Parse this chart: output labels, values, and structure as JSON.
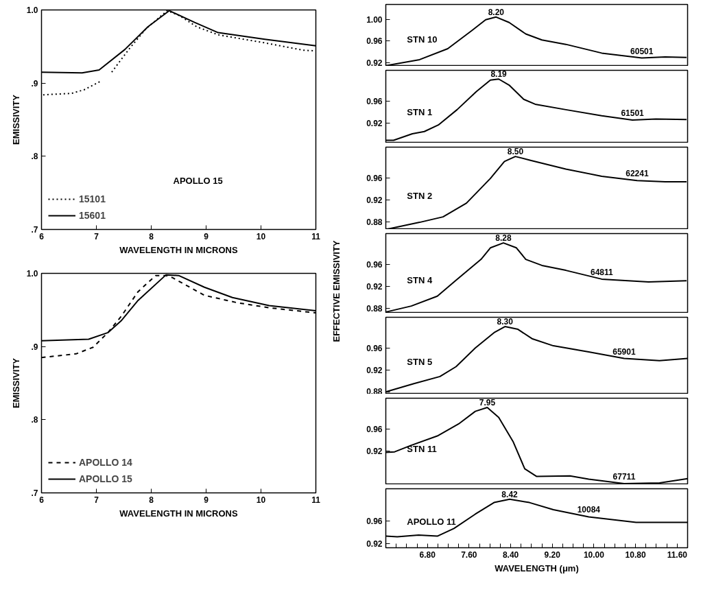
{
  "chart_data": [
    {
      "type": "line",
      "xlabel": "WAVELENGTH IN MICRONS",
      "ylabel": "EMISSIVITY",
      "xlim": [
        6,
        11
      ],
      "ylim": [
        0.7,
        1.0
      ],
      "xticks": [
        6,
        7,
        8,
        9,
        10,
        11
      ],
      "yticks": [
        {
          "value": 0.7,
          "label": ".7"
        },
        {
          "value": 0.8,
          "label": ".8"
        },
        {
          "value": 0.9,
          "label": ".9"
        },
        {
          "value": 1.0,
          "label": "1.0"
        }
      ],
      "legend": "bottom left",
      "annotations": [
        "APOLLO 15"
      ],
      "series": [
        {
          "name": "15101",
          "color": "#000000",
          "line_style": "dotted",
          "x": [
            6.03,
            6.55,
            6.78,
            7.09
          ],
          "values": [
            0.884,
            0.886,
            0.891,
            0.903
          ]
        },
        {
          "name": "15601",
          "color": "#000000",
          "line_style": "solid",
          "x": [
            6.0,
            6.74,
            7.05,
            7.52,
            7.94,
            8.33,
            8.79,
            9.22,
            10.07,
            11.0
          ],
          "values": [
            0.915,
            0.914,
            0.918,
            0.946,
            0.977,
            0.999,
            0.983,
            0.969,
            0.96,
            0.951
          ]
        },
        {
          "color": "#000000",
          "line_style": "dotted",
          "x": [
            7.28,
            7.59,
            7.9,
            8.29,
            8.52,
            8.83,
            9.22,
            10.07,
            10.77,
            11.0
          ],
          "values": [
            0.915,
            0.946,
            0.974,
            0.999,
            0.992,
            0.977,
            0.966,
            0.955,
            0.945,
            0.944
          ]
        }
      ]
    },
    {
      "type": "line",
      "xlabel": "WAVELENGTH IN MICRONS",
      "ylabel": "EMISSIVITY",
      "xlim": [
        6,
        11
      ],
      "ylim": [
        0.7,
        1.0
      ],
      "xticks": [
        6,
        7,
        8,
        9,
        10,
        11
      ],
      "yticks": [
        {
          "value": 0.7,
          "label": ".7"
        },
        {
          "value": 0.8,
          "label": ".8"
        },
        {
          "value": 0.9,
          "label": ".9"
        },
        {
          "value": 1.0,
          "label": "1.0"
        }
      ],
      "legend": "bottom left",
      "series": [
        {
          "name": "APOLLO 14",
          "color": "#000000",
          "line_style": "dashed",
          "x": [
            6.0,
            6.63,
            6.94,
            7.21,
            7.45,
            7.76,
            8.08,
            8.27,
            8.39,
            8.97,
            9.56,
            10.15,
            11.0
          ],
          "values": [
            0.885,
            0.89,
            0.899,
            0.919,
            0.941,
            0.975,
            0.997,
            0.997,
            0.994,
            0.97,
            0.96,
            0.953,
            0.946
          ]
        },
        {
          "name": "APOLLO 15",
          "color": "#000000",
          "line_style": "solid",
          "x": [
            6.0,
            6.86,
            7.21,
            7.45,
            7.76,
            8.27,
            8.5,
            8.97,
            9.48,
            10.15,
            11.0
          ],
          "values": [
            0.908,
            0.91,
            0.919,
            0.935,
            0.963,
            0.998,
            0.997,
            0.981,
            0.967,
            0.956,
            0.949
          ]
        }
      ]
    },
    {
      "type": "line",
      "tick_labels": "y",
      "xlim": [
        6.0,
        11.8
      ],
      "ylim": [
        0.914,
        1.027
      ],
      "yticks": [
        0.92,
        0.96,
        {
          "value": 1.0,
          "label": "1.00"
        }
      ],
      "annotations": [
        "STN 10",
        {
          "text": "8.20",
          "x": 8.12,
          "y": 1.004
        }
      ],
      "series": [
        {
          "name": "60501",
          "color": "#000000",
          "line_style": "solid",
          "x": [
            6.0,
            6.65,
            7.19,
            7.65,
            7.92,
            8.12,
            8.37,
            8.69,
            9.0,
            9.46,
            10.15,
            10.92,
            11.37,
            11.78
          ],
          "values": [
            0.915,
            0.926,
            0.946,
            0.979,
            0.999,
            1.004,
            0.994,
            0.973,
            0.962,
            0.954,
            0.938,
            0.929,
            0.931,
            0.93
          ]
        }
      ]
    },
    {
      "type": "line",
      "tick_labels": "y",
      "xlim": [
        6.0,
        11.8
      ],
      "ylim": [
        0.883,
        1.016
      ],
      "yticks": [
        0.92,
        0.96
      ],
      "annotations": [
        "STN 1",
        {
          "text": "8.19",
          "x": 8.17,
          "y": 1.0
        }
      ],
      "series": [
        {
          "name": "61501",
          "color": "#000000",
          "line_style": "solid",
          "x": [
            6.0,
            6.15,
            6.51,
            6.74,
            7.01,
            7.37,
            7.74,
            8.01,
            8.17,
            8.37,
            8.65,
            8.87,
            9.46,
            10.15,
            10.74,
            11.19,
            11.78
          ],
          "values": [
            0.888,
            0.888,
            0.9,
            0.904,
            0.916,
            0.944,
            0.977,
            0.998,
            1.0,
            0.989,
            0.963,
            0.954,
            0.944,
            0.933,
            0.925,
            0.927,
            0.926
          ]
        }
      ]
    },
    {
      "type": "line",
      "tick_labels": "y",
      "xlim": [
        6.0,
        11.8
      ],
      "ylim": [
        0.866,
        1.016
      ],
      "yticks": [
        0.88,
        0.92,
        0.96
      ],
      "annotations": [
        "STN 2",
        {
          "text": "8.50",
          "x": 8.49,
          "y": 0.999
        }
      ],
      "series": [
        {
          "name": "62241",
          "color": "#000000",
          "line_style": "solid",
          "x": [
            6.0,
            6.65,
            7.1,
            7.55,
            8.01,
            8.28,
            8.49,
            8.78,
            9.46,
            10.15,
            10.83,
            11.37,
            11.78
          ],
          "values": [
            0.866,
            0.879,
            0.889,
            0.914,
            0.959,
            0.99,
            0.999,
            0.992,
            0.976,
            0.963,
            0.955,
            0.953,
            0.953
          ]
        }
      ]
    },
    {
      "type": "line",
      "tick_labels": "y",
      "ylabel": "EFFECTIVE EMISSIVITY",
      "xlim": [
        6.0,
        11.8
      ],
      "ylim": [
        0.871,
        1.016
      ],
      "yticks": [
        0.88,
        0.92,
        0.96
      ],
      "annotations": [
        "STN 4",
        {
          "text": "8.28",
          "x": 8.26,
          "y": 0.999
        }
      ],
      "series": [
        {
          "name": "64811",
          "color": "#000000",
          "line_style": "solid",
          "x": [
            6.0,
            6.49,
            6.99,
            7.35,
            7.83,
            8.01,
            8.26,
            8.51,
            8.69,
            9.0,
            9.46,
            10.15,
            11.05,
            11.78
          ],
          "values": [
            0.873,
            0.884,
            0.902,
            0.931,
            0.969,
            0.99,
            0.999,
            0.99,
            0.969,
            0.958,
            0.949,
            0.933,
            0.928,
            0.93
          ]
        }
      ]
    },
    {
      "type": "line",
      "tick_labels": "y",
      "xlim": [
        6.0,
        11.8
      ],
      "ylim": [
        0.876,
        1.016
      ],
      "yticks": [
        0.88,
        0.92,
        0.96
      ],
      "annotations": [
        "STN 5",
        {
          "text": "8.30",
          "x": 8.29,
          "y": 0.999
        }
      ],
      "series": [
        {
          "name": "65901",
          "color": "#000000",
          "line_style": "solid",
          "x": [
            6.0,
            6.54,
            7.04,
            7.35,
            7.72,
            8.08,
            8.29,
            8.54,
            8.81,
            9.22,
            9.9,
            10.58,
            11.26,
            11.8
          ],
          "values": [
            0.88,
            0.895,
            0.908,
            0.926,
            0.96,
            0.988,
            0.999,
            0.994,
            0.977,
            0.964,
            0.953,
            0.941,
            0.937,
            0.941
          ]
        }
      ]
    },
    {
      "type": "line",
      "tick_labels": "y",
      "xlim": [
        6.0,
        11.8
      ],
      "ylim": [
        0.858,
        1.016
      ],
      "yticks": [
        0.92,
        0.96
      ],
      "annotations": [
        "STN 11",
        {
          "text": "7.95",
          "x": 7.95,
          "y": 0.999
        }
      ],
      "series": [
        {
          "name": "67711",
          "color": "#000000",
          "line_style": "solid",
          "x": [
            6.0,
            6.17,
            6.49,
            6.99,
            7.4,
            7.72,
            7.95,
            8.17,
            8.45,
            8.67,
            8.9,
            9.54,
            9.9,
            10.58,
            11.26,
            11.8
          ],
          "values": [
            0.917,
            0.918,
            0.93,
            0.947,
            0.969,
            0.992,
            0.999,
            0.981,
            0.936,
            0.887,
            0.873,
            0.874,
            0.868,
            0.86,
            0.861,
            0.869
          ]
        }
      ]
    },
    {
      "type": "line",
      "xlabel": "WAVELENGTH (μm)",
      "xlim": [
        6.0,
        11.8
      ],
      "ylim": [
        0.912,
        1.019
      ],
      "xticks": [
        {
          "value": 6.0,
          "label": null
        },
        {
          "value": 6.2,
          "label": null
        },
        {
          "value": 6.4,
          "label": null
        },
        {
          "value": 6.6,
          "label": null
        },
        {
          "value": 6.8,
          "label": "6.80"
        },
        {
          "value": 7.0,
          "label": null
        },
        {
          "value": 7.2,
          "label": null
        },
        {
          "value": 7.4,
          "label": null
        },
        {
          "value": 7.6,
          "label": "7.60"
        },
        {
          "value": 7.8,
          "label": null
        },
        {
          "value": 8.0,
          "label": null
        },
        {
          "value": 8.2,
          "label": null
        },
        {
          "value": 8.4,
          "label": "8.40"
        },
        {
          "value": 8.6,
          "label": null
        },
        {
          "value": 8.8,
          "label": null
        },
        {
          "value": 9.0,
          "label": null
        },
        {
          "value": 9.2,
          "label": "9.20"
        },
        {
          "value": 9.4,
          "label": null
        },
        {
          "value": 9.6,
          "label": null
        },
        {
          "value": 9.8,
          "label": null
        },
        {
          "value": 10.0,
          "label": "10.00"
        },
        {
          "value": 10.2,
          "label": null
        },
        {
          "value": 10.4,
          "label": null
        },
        {
          "value": 10.6,
          "label": null
        },
        {
          "value": 10.8,
          "label": "10.80"
        },
        {
          "value": 11.0,
          "label": null
        },
        {
          "value": 11.2,
          "label": null
        },
        {
          "value": 11.4,
          "label": null
        },
        {
          "value": 11.6,
          "label": "11.60"
        },
        {
          "value": 11.8,
          "label": null
        }
      ],
      "yticks": [
        0.92,
        0.96
      ],
      "annotations": [
        "APOLLO 11",
        {
          "text": "8.42",
          "x": 8.38,
          "y": 1.0
        }
      ],
      "series": [
        {
          "name": "10084",
          "color": "#000000",
          "line_style": "solid",
          "x": [
            6.0,
            6.22,
            6.63,
            6.99,
            7.31,
            7.72,
            8.08,
            8.38,
            8.76,
            9.22,
            9.9,
            10.81,
            11.8
          ],
          "values": [
            0.933,
            0.932,
            0.935,
            0.933,
            0.947,
            0.973,
            0.994,
            1.0,
            0.994,
            0.981,
            0.968,
            0.958,
            0.958
          ]
        }
      ]
    }
  ]
}
